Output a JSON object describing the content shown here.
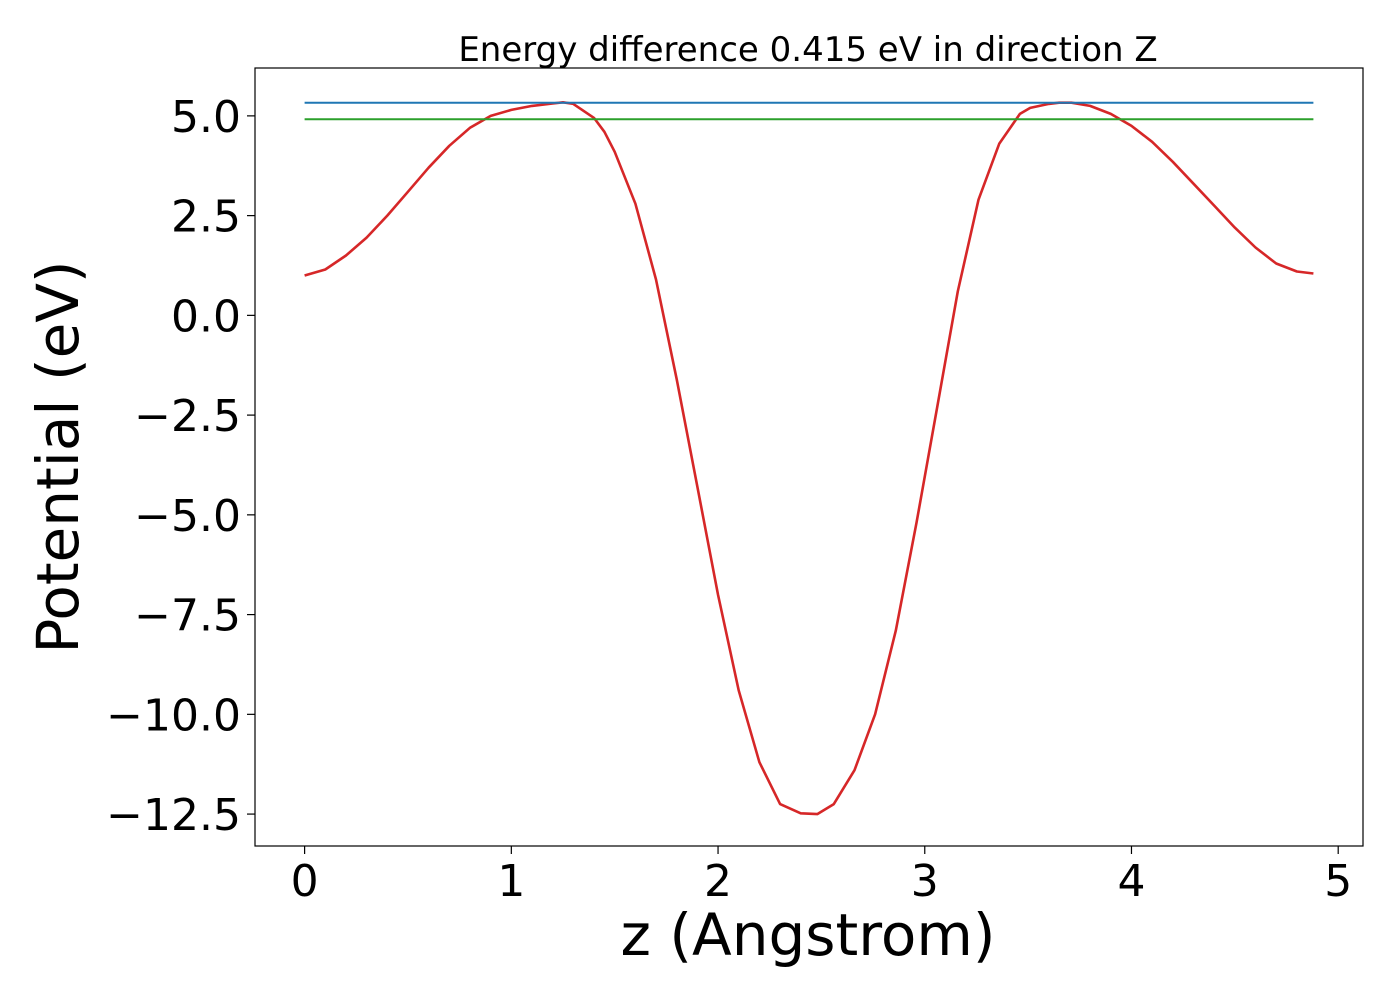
{
  "chart_data": {
    "type": "line",
    "title": "Energy difference 0.415 eV in direction Z",
    "xlabel": "z (Angstrom)",
    "ylabel": "Potential (eV)",
    "xlim": [
      -0.24,
      5.12
    ],
    "ylim": [
      -13.3,
      6.2
    ],
    "grid": false,
    "legend": "none",
    "xticks": [
      0,
      1,
      2,
      3,
      4,
      5
    ],
    "xtick_labels": [
      "0",
      "1",
      "2",
      "3",
      "4",
      "5"
    ],
    "yticks": [
      5.0,
      2.5,
      0.0,
      -2.5,
      -5.0,
      -7.5,
      -10.0,
      -12.5
    ],
    "ytick_labels": [
      "5.0",
      "2.5",
      "0.0",
      "−2.5",
      "−5.0",
      "−7.5",
      "−10.0",
      "−12.5"
    ],
    "series": [
      {
        "color": "#d62728",
        "x": [
          0.0,
          0.1,
          0.2,
          0.3,
          0.4,
          0.5,
          0.6,
          0.7,
          0.8,
          0.9,
          1.0,
          1.1,
          1.2,
          1.25,
          1.3,
          1.4,
          1.45,
          1.5,
          1.6,
          1.7,
          1.8,
          1.9,
          2.0,
          2.1,
          2.2,
          2.3,
          2.4,
          2.48,
          2.56,
          2.66,
          2.76,
          2.86,
          2.96,
          3.06,
          3.16,
          3.26,
          3.36,
          3.46,
          3.51,
          3.6,
          3.65,
          3.71,
          3.8,
          3.9,
          4.0,
          4.1,
          4.2,
          4.3,
          4.4,
          4.5,
          4.6,
          4.7,
          4.8,
          4.88
        ],
        "y": [
          1.0,
          1.15,
          1.5,
          1.95,
          2.5,
          3.1,
          3.7,
          4.25,
          4.7,
          5.0,
          5.15,
          5.25,
          5.31,
          5.34,
          5.3,
          4.95,
          4.6,
          4.1,
          2.8,
          0.9,
          -1.6,
          -4.3,
          -7.0,
          -9.4,
          -11.2,
          -12.25,
          -12.48,
          -12.5,
          -12.25,
          -11.4,
          -10.0,
          -7.9,
          -5.2,
          -2.3,
          0.6,
          2.9,
          4.3,
          5.05,
          5.2,
          5.3,
          5.33,
          5.33,
          5.25,
          5.05,
          4.75,
          4.35,
          3.85,
          3.3,
          2.75,
          2.2,
          1.7,
          1.3,
          1.1,
          1.05
        ]
      },
      {
        "color": "#1f77b4",
        "x": [
          0.0,
          4.88
        ],
        "y": [
          5.33,
          5.33
        ]
      },
      {
        "color": "#2ca02c",
        "x": [
          0.0,
          4.88
        ],
        "y": [
          4.915,
          4.915
        ]
      }
    ]
  }
}
